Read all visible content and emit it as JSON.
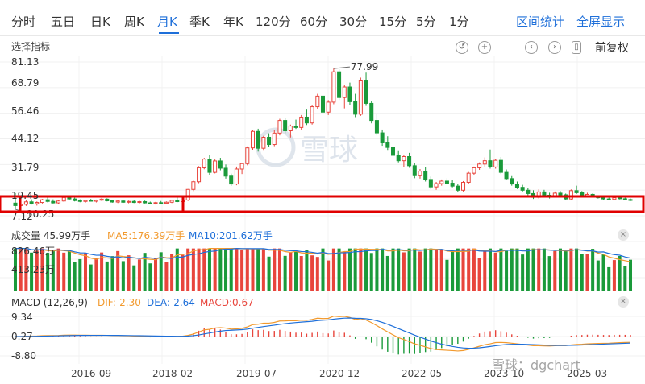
{
  "tabs": [
    "分时",
    "五日",
    "日K",
    "周K",
    "月K",
    "季K",
    "年K",
    "120分",
    "60分",
    "30分",
    "15分",
    "5分",
    "1分"
  ],
  "active_tab": "月K",
  "actions": {
    "range_stats": "区间统计",
    "fullscreen": "全屏显示"
  },
  "toolbar": {
    "select_indicator": "选择指标",
    "adjust": "前复权",
    "icons": [
      "undo-icon",
      "zoom-in-icon",
      "prev-icon",
      "next-icon",
      "candle-type-icon"
    ]
  },
  "price_axis": [
    "81.13",
    "68.79",
    "56.46",
    "44.12",
    "31.79",
    "19.45",
    "7.12"
  ],
  "annotations": {
    "high": "77.99",
    "low": "10.25"
  },
  "volume": {
    "title": "成交量 45.99万手",
    "ma5": "MA5:176.39万手",
    "ma10": "MA10:201.62万手",
    "ticks": [
      "826.46万",
      "413.23万"
    ]
  },
  "macd": {
    "title": "MACD (12,26,9)",
    "dif": "DIF:-2.30",
    "dea": "DEA:-2.64",
    "macd": "MACD:0.67",
    "ticks": [
      "9.34",
      "0.27",
      "-8.80"
    ]
  },
  "x_axis": [
    "2016-09",
    "2018-02",
    "2019-07",
    "2020-12",
    "2022-05",
    "2023-10",
    "2025-03"
  ],
  "watermark": "雪球：dgchart",
  "colors": {
    "up": "#e8453c",
    "down": "#1a9a3a",
    "accent": "#1e6fd9",
    "ma5": "#f29a2e",
    "ma10": "#1e6fd9",
    "highlight": "#e00000"
  },
  "chart_data": {
    "type": "candlestick",
    "y_range": [
      7.12,
      81.13
    ],
    "candles": [
      {
        "o": 13.2,
        "h": 18.0,
        "l": 10.25,
        "c": 12.0
      },
      {
        "o": 12.0,
        "h": 14.0,
        "l": 11.0,
        "c": 12.6
      },
      {
        "o": 12.6,
        "h": 14.5,
        "l": 11.8,
        "c": 13.8
      },
      {
        "o": 13.8,
        "h": 15.0,
        "l": 12.5,
        "c": 12.9
      },
      {
        "o": 12.9,
        "h": 14.0,
        "l": 12.0,
        "c": 13.5
      },
      {
        "o": 13.5,
        "h": 15.2,
        "l": 13.0,
        "c": 14.8
      },
      {
        "o": 14.8,
        "h": 16.0,
        "l": 13.5,
        "c": 14.0
      },
      {
        "o": 14.0,
        "h": 15.0,
        "l": 13.0,
        "c": 13.3
      },
      {
        "o": 13.3,
        "h": 14.6,
        "l": 12.8,
        "c": 14.2
      },
      {
        "o": 14.2,
        "h": 16.2,
        "l": 13.8,
        "c": 15.9
      },
      {
        "o": 15.9,
        "h": 16.8,
        "l": 14.8,
        "c": 15.2
      },
      {
        "o": 15.2,
        "h": 15.8,
        "l": 14.0,
        "c": 14.4
      },
      {
        "o": 14.4,
        "h": 15.0,
        "l": 13.6,
        "c": 14.0
      },
      {
        "o": 14.0,
        "h": 14.8,
        "l": 13.4,
        "c": 14.5
      },
      {
        "o": 14.5,
        "h": 15.2,
        "l": 13.9,
        "c": 14.1
      },
      {
        "o": 14.1,
        "h": 14.9,
        "l": 13.5,
        "c": 14.6
      },
      {
        "o": 14.6,
        "h": 15.6,
        "l": 14.2,
        "c": 15.1
      },
      {
        "o": 15.1,
        "h": 15.5,
        "l": 14.0,
        "c": 14.3
      },
      {
        "o": 14.3,
        "h": 14.8,
        "l": 13.4,
        "c": 13.7
      },
      {
        "o": 13.7,
        "h": 14.5,
        "l": 13.2,
        "c": 14.2
      },
      {
        "o": 14.2,
        "h": 14.6,
        "l": 13.3,
        "c": 13.6
      },
      {
        "o": 13.6,
        "h": 14.4,
        "l": 13.1,
        "c": 14.0
      },
      {
        "o": 14.0,
        "h": 14.5,
        "l": 13.2,
        "c": 13.5
      },
      {
        "o": 13.5,
        "h": 14.3,
        "l": 13.0,
        "c": 13.9
      },
      {
        "o": 13.9,
        "h": 14.4,
        "l": 13.0,
        "c": 13.3
      },
      {
        "o": 13.3,
        "h": 13.9,
        "l": 12.6,
        "c": 13.0
      },
      {
        "o": 13.0,
        "h": 13.8,
        "l": 12.5,
        "c": 13.4
      },
      {
        "o": 13.4,
        "h": 14.2,
        "l": 12.9,
        "c": 13.1
      },
      {
        "o": 13.1,
        "h": 14.0,
        "l": 12.7,
        "c": 13.6
      },
      {
        "o": 13.6,
        "h": 14.8,
        "l": 13.2,
        "c": 14.5
      },
      {
        "o": 14.5,
        "h": 16.0,
        "l": 13.6,
        "c": 13.9
      },
      {
        "o": 13.9,
        "h": 15.0,
        "l": 13.0,
        "c": 14.7
      },
      {
        "o": 14.7,
        "h": 20.0,
        "l": 14.2,
        "c": 19.8
      },
      {
        "o": 19.8,
        "h": 24.0,
        "l": 19.0,
        "c": 23.5
      },
      {
        "o": 23.5,
        "h": 31.0,
        "l": 22.8,
        "c": 30.2
      },
      {
        "o": 30.2,
        "h": 35.0,
        "l": 29.5,
        "c": 34.4
      },
      {
        "o": 34.4,
        "h": 36.2,
        "l": 26.8,
        "c": 28.0
      },
      {
        "o": 28.0,
        "h": 34.2,
        "l": 27.5,
        "c": 33.5
      },
      {
        "o": 33.5,
        "h": 35.0,
        "l": 29.0,
        "c": 30.0
      },
      {
        "o": 30.0,
        "h": 31.8,
        "l": 25.0,
        "c": 26.2
      },
      {
        "o": 26.2,
        "h": 27.4,
        "l": 21.5,
        "c": 22.4
      },
      {
        "o": 22.4,
        "h": 30.8,
        "l": 21.8,
        "c": 29.6
      },
      {
        "o": 29.6,
        "h": 32.6,
        "l": 27.2,
        "c": 32.2
      },
      {
        "o": 32.2,
        "h": 40.5,
        "l": 31.4,
        "c": 39.8
      },
      {
        "o": 39.8,
        "h": 48.5,
        "l": 38.9,
        "c": 47.7
      },
      {
        "o": 47.7,
        "h": 49.0,
        "l": 38.0,
        "c": 39.6
      },
      {
        "o": 39.6,
        "h": 45.6,
        "l": 38.8,
        "c": 44.9
      },
      {
        "o": 44.9,
        "h": 46.8,
        "l": 40.2,
        "c": 41.4
      },
      {
        "o": 41.4,
        "h": 48.2,
        "l": 40.6,
        "c": 46.9
      },
      {
        "o": 46.9,
        "h": 53.8,
        "l": 45.8,
        "c": 53.0
      },
      {
        "o": 53.0,
        "h": 54.2,
        "l": 46.8,
        "c": 48.0
      },
      {
        "o": 48.0,
        "h": 51.0,
        "l": 44.8,
        "c": 50.3
      },
      {
        "o": 50.3,
        "h": 53.4,
        "l": 48.9,
        "c": 49.6
      },
      {
        "o": 49.6,
        "h": 55.6,
        "l": 48.6,
        "c": 54.6
      },
      {
        "o": 54.6,
        "h": 58.2,
        "l": 50.8,
        "c": 51.8
      },
      {
        "o": 51.8,
        "h": 60.6,
        "l": 51.0,
        "c": 59.6
      },
      {
        "o": 59.6,
        "h": 65.8,
        "l": 58.6,
        "c": 64.7
      },
      {
        "o": 64.7,
        "h": 66.0,
        "l": 55.8,
        "c": 57.0
      },
      {
        "o": 57.0,
        "h": 62.8,
        "l": 55.6,
        "c": 61.8
      },
      {
        "o": 61.8,
        "h": 77.99,
        "l": 60.8,
        "c": 76.4
      },
      {
        "o": 76.4,
        "h": 77.6,
        "l": 62.8,
        "c": 64.0
      },
      {
        "o": 64.0,
        "h": 70.2,
        "l": 58.8,
        "c": 69.1
      },
      {
        "o": 69.1,
        "h": 71.2,
        "l": 60.6,
        "c": 62.0
      },
      {
        "o": 62.0,
        "h": 65.8,
        "l": 54.6,
        "c": 56.0
      },
      {
        "o": 56.0,
        "h": 73.6,
        "l": 55.2,
        "c": 72.4
      },
      {
        "o": 72.4,
        "h": 76.0,
        "l": 60.0,
        "c": 61.2
      },
      {
        "o": 61.2,
        "h": 62.4,
        "l": 51.6,
        "c": 53.0
      },
      {
        "o": 53.0,
        "h": 56.2,
        "l": 45.8,
        "c": 47.0
      },
      {
        "o": 47.0,
        "h": 48.6,
        "l": 40.8,
        "c": 42.2
      },
      {
        "o": 42.2,
        "h": 45.4,
        "l": 38.8,
        "c": 40.0
      },
      {
        "o": 40.0,
        "h": 42.6,
        "l": 35.2,
        "c": 36.2
      },
      {
        "o": 36.2,
        "h": 38.6,
        "l": 32.8,
        "c": 33.6
      },
      {
        "o": 33.6,
        "h": 36.4,
        "l": 30.6,
        "c": 35.6
      },
      {
        "o": 35.6,
        "h": 37.4,
        "l": 30.2,
        "c": 31.2
      },
      {
        "o": 31.2,
        "h": 32.4,
        "l": 25.2,
        "c": 26.4
      },
      {
        "o": 26.4,
        "h": 29.6,
        "l": 25.0,
        "c": 28.6
      },
      {
        "o": 28.6,
        "h": 30.6,
        "l": 23.6,
        "c": 24.6
      },
      {
        "o": 24.6,
        "h": 26.0,
        "l": 20.0,
        "c": 21.0
      },
      {
        "o": 21.0,
        "h": 23.4,
        "l": 19.6,
        "c": 22.6
      },
      {
        "o": 22.6,
        "h": 24.6,
        "l": 21.6,
        "c": 23.8
      },
      {
        "o": 23.8,
        "h": 25.2,
        "l": 22.2,
        "c": 22.8
      },
      {
        "o": 22.8,
        "h": 24.2,
        "l": 20.8,
        "c": 21.4
      },
      {
        "o": 21.4,
        "h": 22.4,
        "l": 18.6,
        "c": 19.4
      },
      {
        "o": 19.4,
        "h": 23.8,
        "l": 18.8,
        "c": 23.2
      },
      {
        "o": 23.2,
        "h": 28.2,
        "l": 22.4,
        "c": 27.6
      },
      {
        "o": 27.6,
        "h": 30.8,
        "l": 26.6,
        "c": 30.2
      },
      {
        "o": 30.2,
        "h": 32.8,
        "l": 29.2,
        "c": 32.0
      },
      {
        "o": 32.0,
        "h": 35.2,
        "l": 30.8,
        "c": 33.6
      },
      {
        "o": 33.6,
        "h": 39.0,
        "l": 29.8,
        "c": 30.6
      },
      {
        "o": 30.6,
        "h": 34.6,
        "l": 29.8,
        "c": 33.8
      },
      {
        "o": 33.8,
        "h": 35.4,
        "l": 27.2,
        "c": 28.0
      },
      {
        "o": 28.0,
        "h": 29.4,
        "l": 24.2,
        "c": 25.0
      },
      {
        "o": 25.0,
        "h": 26.2,
        "l": 21.6,
        "c": 22.4
      },
      {
        "o": 22.4,
        "h": 23.6,
        "l": 20.0,
        "c": 20.8
      },
      {
        "o": 20.8,
        "h": 22.0,
        "l": 18.8,
        "c": 19.4
      },
      {
        "o": 19.4,
        "h": 20.6,
        "l": 17.0,
        "c": 17.8
      },
      {
        "o": 17.8,
        "h": 19.4,
        "l": 15.2,
        "c": 16.0
      },
      {
        "o": 16.0,
        "h": 19.8,
        "l": 15.4,
        "c": 18.6
      },
      {
        "o": 18.6,
        "h": 19.6,
        "l": 16.2,
        "c": 17.0
      },
      {
        "o": 17.0,
        "h": 18.2,
        "l": 15.4,
        "c": 16.6
      },
      {
        "o": 16.6,
        "h": 18.8,
        "l": 16.0,
        "c": 18.0
      },
      {
        "o": 18.0,
        "h": 19.0,
        "l": 16.4,
        "c": 17.2
      },
      {
        "o": 17.2,
        "h": 17.8,
        "l": 14.6,
        "c": 15.2
      },
      {
        "o": 15.2,
        "h": 19.8,
        "l": 14.8,
        "c": 19.2
      },
      {
        "o": 19.2,
        "h": 21.6,
        "l": 17.6,
        "c": 18.2
      },
      {
        "o": 18.2,
        "h": 19.0,
        "l": 16.2,
        "c": 16.8
      },
      {
        "o": 16.8,
        "h": 18.2,
        "l": 16.2,
        "c": 17.4
      },
      {
        "o": 17.4,
        "h": 17.9,
        "l": 16.0,
        "c": 16.4
      },
      {
        "o": 16.4,
        "h": 17.0,
        "l": 15.4,
        "c": 15.8
      },
      {
        "o": 15.8,
        "h": 16.4,
        "l": 14.8,
        "c": 15.2
      },
      {
        "o": 15.2,
        "h": 15.8,
        "l": 14.6,
        "c": 15.0
      },
      {
        "o": 15.0,
        "h": 16.2,
        "l": 14.8,
        "c": 15.8
      },
      {
        "o": 15.8,
        "h": 16.2,
        "l": 15.0,
        "c": 15.3
      },
      {
        "o": 15.3,
        "h": 15.8,
        "l": 14.6,
        "c": 14.9
      },
      {
        "o": 14.9,
        "h": 15.4,
        "l": 14.2,
        "c": 14.5
      }
    ],
    "volume_ticks": [
      826.46,
      413.23
    ],
    "macd_ticks": [
      9.34,
      0.27,
      -8.8
    ]
  }
}
